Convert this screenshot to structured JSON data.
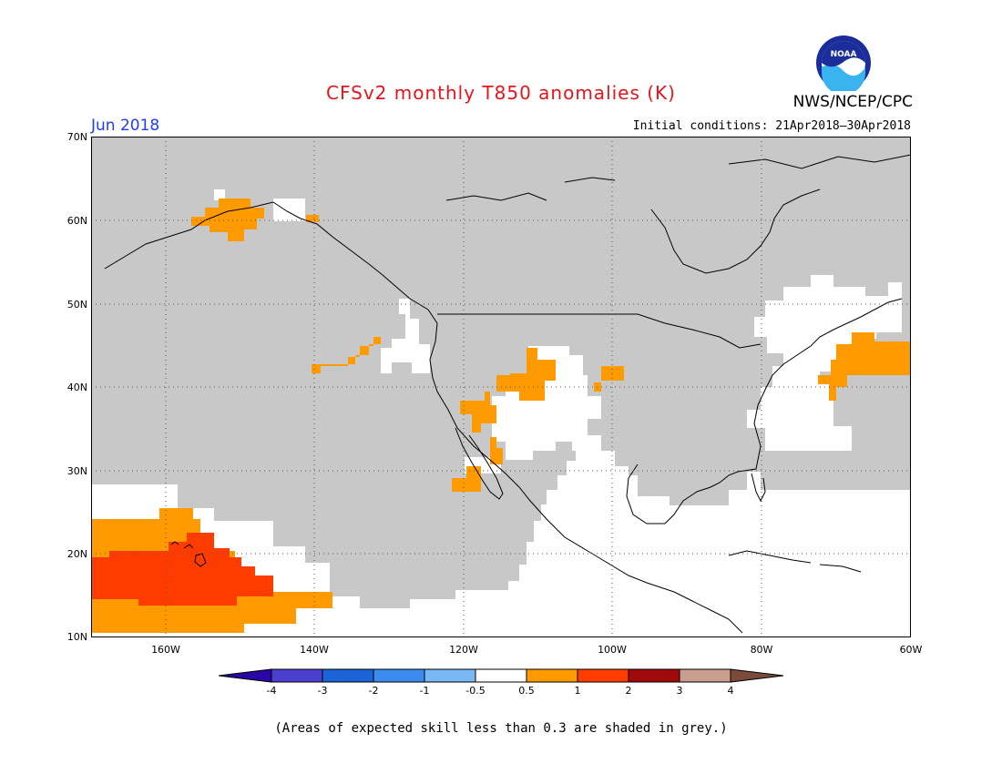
{
  "header": {
    "title": "CFSv2 monthly T850 anomalies (K)",
    "org": "NWS/NCEP/CPC",
    "logo_text": "NOAA",
    "month": "Jun 2018",
    "initial_conditions": "Initial conditions: 21Apr2018–30Apr2018"
  },
  "map": {
    "projection": "cylindrical lat-lon",
    "lon_range": [
      "170W",
      "60W"
    ],
    "lat_range": [
      "10N",
      "70N"
    ],
    "lat_labels": [
      "70N",
      "60N",
      "50N",
      "40N",
      "30N",
      "20N",
      "10N"
    ],
    "lon_labels": [
      "160W",
      "140W",
      "120W",
      "100W",
      "80W",
      "60W"
    ],
    "grid": true,
    "colors": {
      "low_skill_grey": "#c8c8c8",
      "neutral": "#ffffff",
      "anom_0_5_to_1": "#ff9b00",
      "anom_1_to_2": "#ff3c00",
      "coastline": "#000000"
    }
  },
  "colorbar": {
    "labels": [
      "-4",
      "-3",
      "-2",
      "-1",
      "-0.5",
      "0.5",
      "1",
      "2",
      "3",
      "4"
    ],
    "colors": [
      "#2a06a8",
      "#4b3fd0",
      "#1a64d8",
      "#3c8cf0",
      "#7ab8f5",
      "#ffffff",
      "#ff9b00",
      "#ff3c00",
      "#a00a0a",
      "#c99e8f",
      "#7b4b3a"
    ]
  },
  "caption": "(Areas of expected skill less than 0.3 are shaded in grey.)"
}
